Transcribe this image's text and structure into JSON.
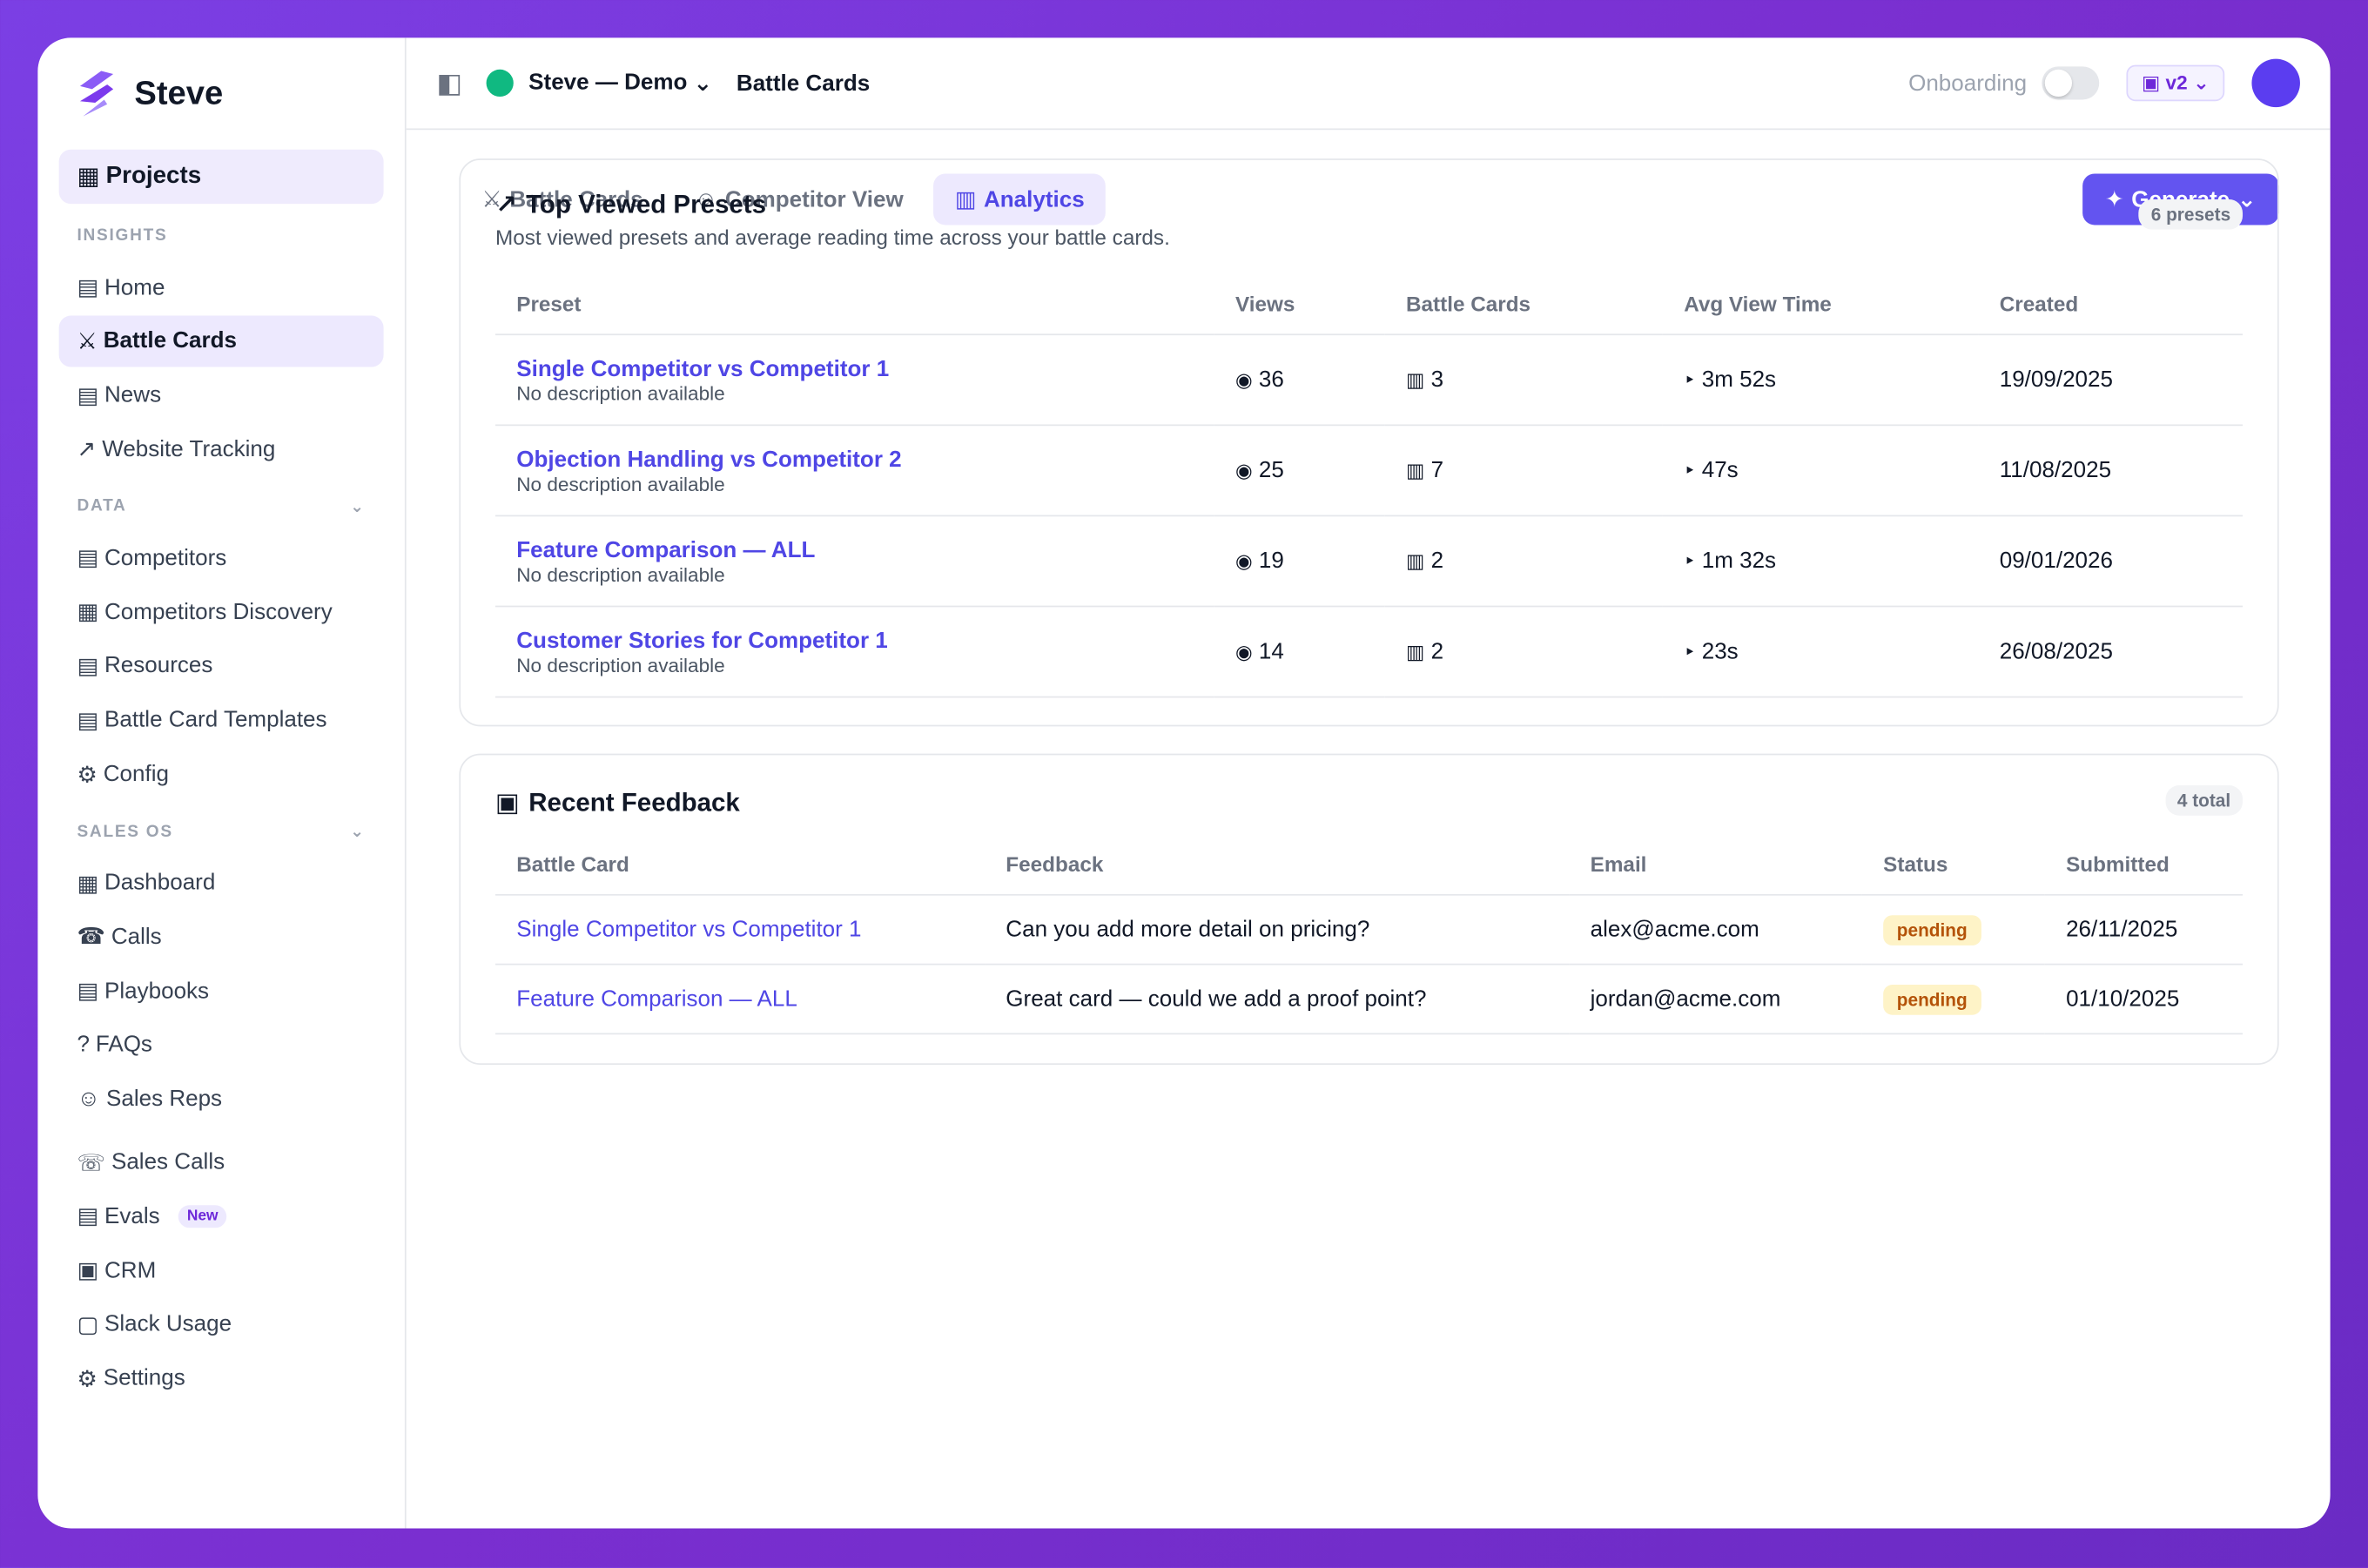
{
  "sidebar": {
    "brand": "Steve",
    "projects": {
      "icon": "▦",
      "label": "Projects"
    },
    "sections": [
      {
        "title": "INSIGHTS",
        "items": [
          {
            "icon": "▤",
            "label": "Home"
          },
          {
            "icon": "⚔",
            "label": "Battle Cards",
            "active": true
          },
          {
            "icon": "▤",
            "label": "News"
          },
          {
            "icon": "↗",
            "label": "Website Tracking"
          }
        ]
      },
      {
        "title": "DATA",
        "caret": "⌄",
        "items": [
          {
            "icon": "▤",
            "label": "Competitors"
          },
          {
            "icon": "▦",
            "label": "Competitors Discovery"
          },
          {
            "icon": "▤",
            "label": "Resources"
          },
          {
            "icon": "▤",
            "label": "Battle Card Templates"
          },
          {
            "icon": "⚙",
            "label": "Config"
          }
        ]
      },
      {
        "title": "SALES OS",
        "caret": "⌄",
        "items": [
          {
            "icon": "▦",
            "label": "Dashboard"
          },
          {
            "icon": "☎",
            "label": "Calls"
          },
          {
            "icon": "▤",
            "label": "Playbooks"
          },
          {
            "icon": "?",
            "label": "FAQs"
          },
          {
            "icon": "☺",
            "label": "Sales Reps"
          }
        ]
      },
      {
        "items": [
          {
            "icon": "☏",
            "label": "Sales Calls"
          },
          {
            "icon": "▤",
            "label": "Evals",
            "badge": "New"
          },
          {
            "icon": "▣",
            "label": "CRM"
          },
          {
            "icon": "▢",
            "label": "Slack Usage"
          },
          {
            "icon": "⚙",
            "label": "Settings"
          }
        ]
      }
    ]
  },
  "topbar": {
    "toggle": "◧",
    "workspace": "Steve — Demo",
    "caret": "⌄",
    "page": "Battle Cards",
    "onboarding": "Onboarding",
    "version": {
      "icon": "▣",
      "label": "v2",
      "caret": "⌄"
    }
  },
  "tabs": [
    {
      "icon": "⚔",
      "label": "Battle Cards"
    },
    {
      "icon": "☺",
      "label": "Competitor View"
    },
    {
      "icon": "▥",
      "label": "Analytics",
      "active": true
    }
  ],
  "generate": {
    "icon": "✦",
    "label": "Generate",
    "caret": "⌄"
  },
  "presets": {
    "icon": "↗",
    "title": "Top Viewed Presets",
    "subtitle": "Most viewed presets and average reading time across your battle cards.",
    "count": "6 presets",
    "columns": [
      "Preset",
      "Views",
      "Battle Cards",
      "Avg View Time",
      "Created"
    ],
    "icons": {
      "views": "◉",
      "cards": "▥",
      "time": "‣"
    },
    "rows": [
      {
        "name": "Single Competitor vs Competitor 1",
        "description": "No description available",
        "views": 36,
        "cards": 3,
        "time": "3m 52s",
        "created": "19/09/2025"
      },
      {
        "name": "Objection Handling vs Competitor 2",
        "description": "No description available",
        "views": 25,
        "cards": 7,
        "time": "47s",
        "created": "11/08/2025"
      },
      {
        "name": "Feature Comparison — ALL",
        "description": "No description available",
        "views": 19,
        "cards": 2,
        "time": "1m 32s",
        "created": "09/01/2026"
      },
      {
        "name": "Customer Stories for Competitor 1",
        "description": "No description available",
        "views": 14,
        "cards": 2,
        "time": "23s",
        "created": "26/08/2025"
      }
    ]
  },
  "feedback": {
    "icon": "▣",
    "title": "Recent Feedback",
    "count": "4 total",
    "columns": [
      "Battle Card",
      "Feedback",
      "Email",
      "Status",
      "Submitted"
    ],
    "rows": [
      {
        "card": "Single Competitor vs Competitor 1",
        "feedback": "Can you add more detail on pricing?",
        "email": "alex@acme.com",
        "status": "pending",
        "submitted": "26/11/2025"
      },
      {
        "card": "Feature Comparison — ALL",
        "feedback": "Great card — could we add a proof point?",
        "email": "jordan@acme.com",
        "status": "pending",
        "submitted": "01/10/2025"
      }
    ]
  }
}
